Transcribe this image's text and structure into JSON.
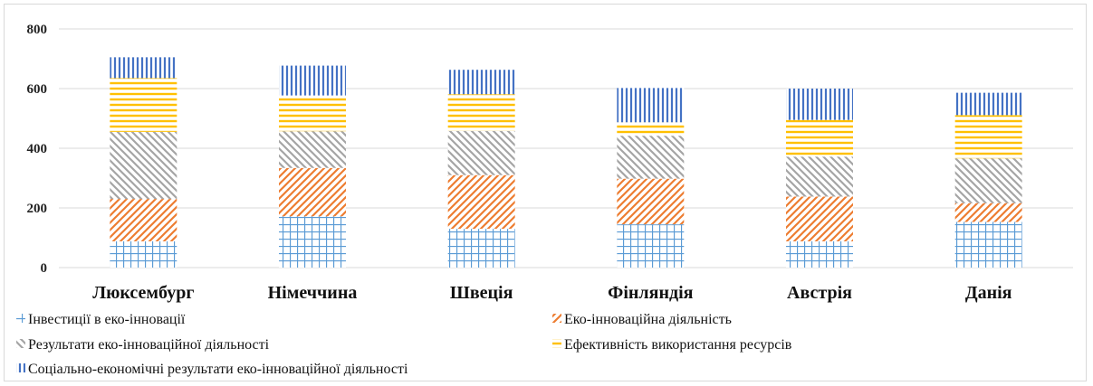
{
  "chart_data": {
    "type": "bar",
    "stacked": true,
    "categories": [
      "Люксембург",
      "Німеччина",
      "Швеція",
      "Фінляндія",
      "Австрія",
      "Данія"
    ],
    "series": [
      {
        "name": "Інвестиції в еко-інновації",
        "color": "#5b9bd5",
        "pattern": "grid",
        "values": [
          88,
          172,
          130,
          145,
          88,
          153
        ]
      },
      {
        "name": "Еко-інноваційна діяльність",
        "color": "#ed7d31",
        "pattern": "diagonal",
        "values": [
          142,
          162,
          180,
          153,
          150,
          63
        ]
      },
      {
        "name": "Результати еко-інноваційної діяльності",
        "color": "#a5a5a5",
        "pattern": "diagonal-back",
        "values": [
          225,
          123,
          148,
          144,
          134,
          150
        ]
      },
      {
        "name": "Ефективність використання ресурсів",
        "color": "#ffc000",
        "pattern": "horizontal",
        "values": [
          180,
          120,
          123,
          45,
          123,
          145
        ]
      },
      {
        "name": "Соціально-економічні результати еко-інноваційної діяльності",
        "color": "#4472c4",
        "pattern": "vertical",
        "values": [
          70,
          100,
          82,
          115,
          105,
          75
        ]
      }
    ],
    "title": "",
    "xlabel": "",
    "ylabel": "",
    "ylim": [
      0,
      800
    ],
    "yticks": [
      "0",
      "200",
      "400",
      "600",
      "800"
    ],
    "grid": true,
    "legend_position": "bottom"
  }
}
